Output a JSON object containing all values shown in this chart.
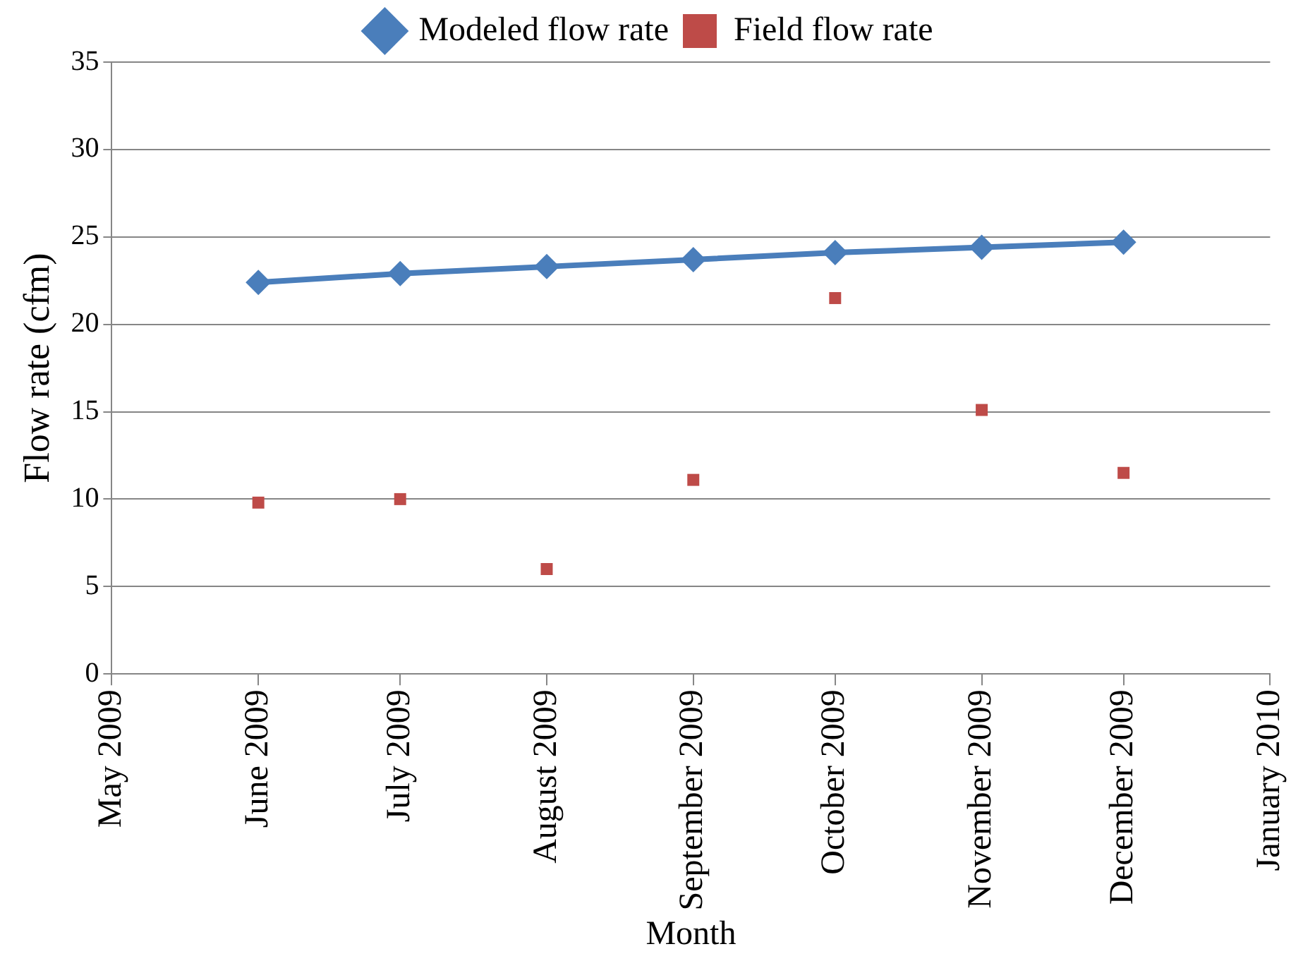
{
  "chart_data": {
    "type": "line",
    "xlabel": "Month",
    "ylabel": "Flow rate (cfm)",
    "x": [
      "2009-06",
      "2009-07",
      "2009-08",
      "2009-09",
      "2009-10",
      "2009-11",
      "2009-12"
    ],
    "xlim": [
      "2009-05",
      "2010-01"
    ],
    "xticks": [
      {
        "value": "2009-05",
        "label": "May 2009"
      },
      {
        "value": "2009-06",
        "label": "June 2009"
      },
      {
        "value": "2009-07",
        "label": "July 2009"
      },
      {
        "value": "2009-08",
        "label": "August 2009"
      },
      {
        "value": "2009-09",
        "label": "September 2009"
      },
      {
        "value": "2009-10",
        "label": "October 2009"
      },
      {
        "value": "2009-11",
        "label": "November 2009"
      },
      {
        "value": "2009-12",
        "label": "December 2009"
      },
      {
        "value": "2010-01",
        "label": "January 2010"
      }
    ],
    "ylim": [
      0,
      35
    ],
    "yticks": [
      0,
      5,
      10,
      15,
      20,
      25,
      30,
      35
    ],
    "grid": "y",
    "legend": "top",
    "series": [
      {
        "name": "Modeled flow rate",
        "type": "line",
        "color": "#4a7ebb",
        "marker": "diamond",
        "line_style": "solid",
        "values": [
          22.4,
          22.9,
          23.3,
          23.7,
          24.1,
          24.4,
          24.7
        ]
      },
      {
        "name": "Field flow rate",
        "type": "scatter",
        "color": "#be4b48",
        "marker": "square",
        "values": [
          9.8,
          10,
          6,
          11.1,
          21.5,
          15.1,
          11.5
        ]
      }
    ]
  }
}
